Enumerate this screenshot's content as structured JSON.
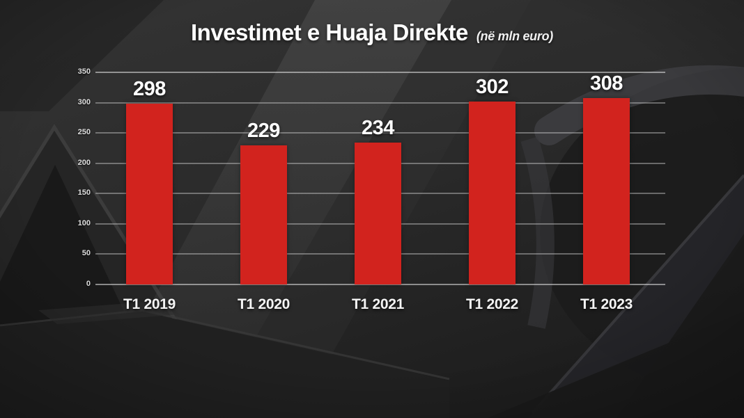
{
  "chart_data": {
    "type": "bar",
    "title": "Investimet e Huaja Direkte",
    "subtitle": "(në mln euro)",
    "categories": [
      "T1 2019",
      "T1 2020",
      "T1 2021",
      "T1 2022",
      "T1 2023"
    ],
    "values": [
      298,
      229,
      234,
      302,
      308
    ],
    "xlabel": "",
    "ylabel": "",
    "ylim": [
      0,
      350
    ],
    "yticks": [
      0,
      50,
      100,
      150,
      200,
      250,
      300,
      350
    ],
    "grid": true,
    "legend": false,
    "bar_color": "#d2231e",
    "gridline_color": "#d6d6d6",
    "label_color": "#ffffff",
    "background_color": "#282828"
  },
  "background": {
    "watermark": "a2-logo"
  }
}
